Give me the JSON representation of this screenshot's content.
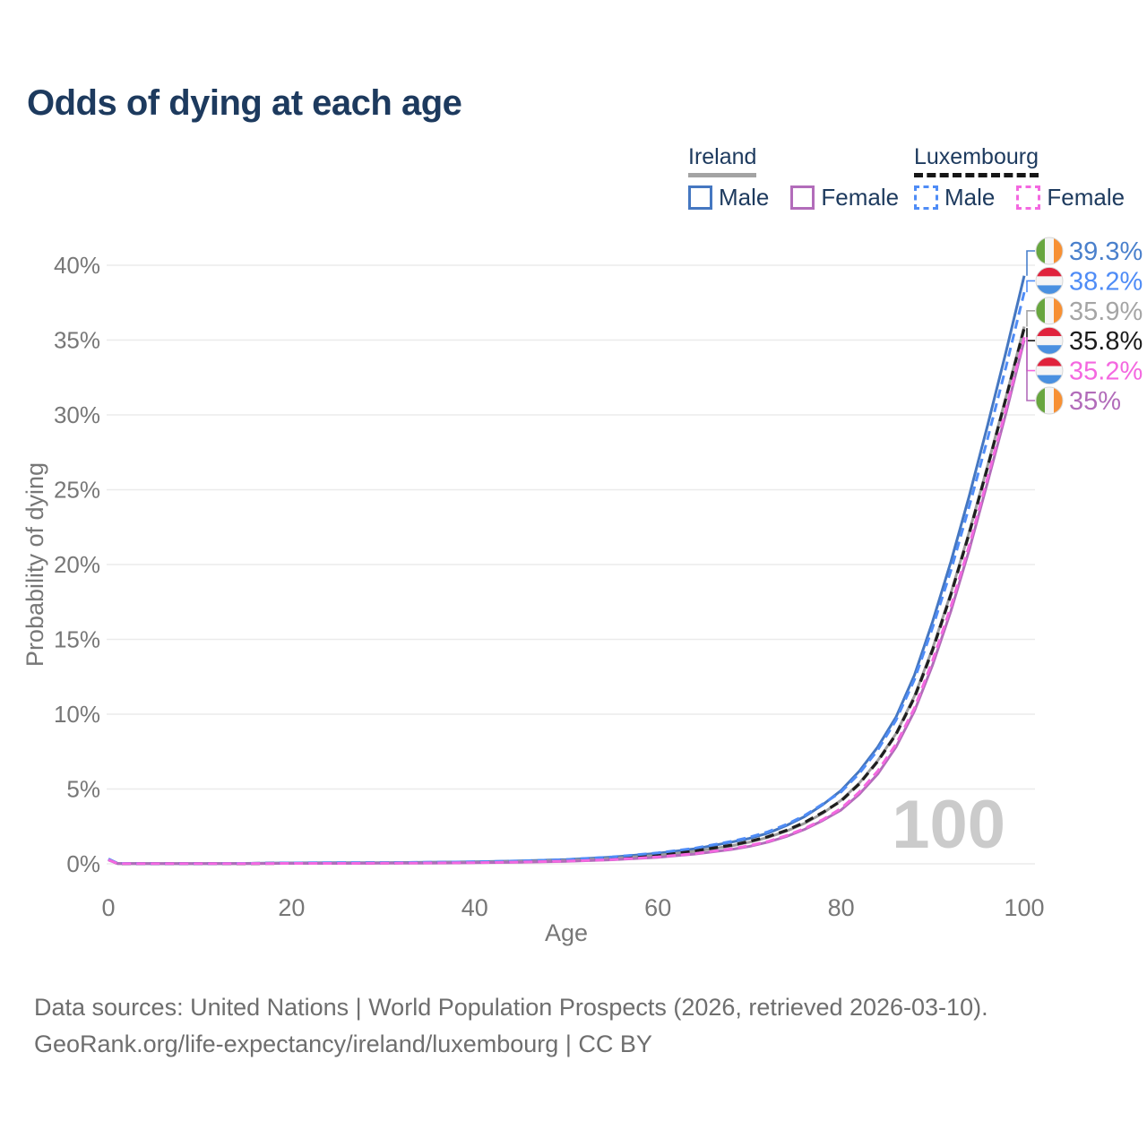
{
  "title": "Odds of dying at each age",
  "legend": {
    "groups": [
      {
        "id": "ireland",
        "label": "Ireland",
        "line_style": "solid",
        "underline_color": "#a3a3a3",
        "items": [
          {
            "label": "Male",
            "color": "#4577c1",
            "style": "solid"
          },
          {
            "label": "Female",
            "color": "#b26cba",
            "style": "solid"
          }
        ]
      },
      {
        "id": "luxembourg",
        "label": "Luxembourg",
        "line_style": "dashed",
        "underline_color": "#161616",
        "items": [
          {
            "label": "Male",
            "color": "#4f8cf6",
            "style": "dashed"
          },
          {
            "label": "Female",
            "color": "#f468e0",
            "style": "dashed"
          }
        ]
      }
    ]
  },
  "chart_data": {
    "type": "line",
    "title": "Odds of dying at each age",
    "xlabel": "Age",
    "ylabel": "Probability of dying",
    "xlim": [
      0,
      100
    ],
    "ylim": [
      0,
      40
    ],
    "grid": "horizontal",
    "legend_position": "top-right",
    "hover_age_watermark": "100",
    "xticks": [
      0,
      20,
      40,
      60,
      80,
      100
    ],
    "yticks": [
      {
        "value": 0,
        "label": "0%"
      },
      {
        "value": 5,
        "label": "5%"
      },
      {
        "value": 10,
        "label": "10%"
      },
      {
        "value": 15,
        "label": "15%"
      },
      {
        "value": 20,
        "label": "20%"
      },
      {
        "value": 25,
        "label": "25%"
      },
      {
        "value": 30,
        "label": "30%"
      },
      {
        "value": 35,
        "label": "35%"
      },
      {
        "value": 40,
        "label": "40%"
      }
    ],
    "ages": [
      0,
      1,
      5,
      10,
      15,
      20,
      25,
      30,
      35,
      40,
      45,
      50,
      55,
      60,
      64,
      68,
      70,
      72,
      74,
      76,
      78,
      80,
      82,
      84,
      86,
      88,
      90,
      92,
      94,
      96,
      98,
      100
    ],
    "series": [
      {
        "id": "ireland-male",
        "name": "Ireland Male",
        "country": "Ireland",
        "sex": "male",
        "style": "solid",
        "color": "#4577c1",
        "label_color": "#4a80cc",
        "flag": "ireland",
        "end_label": "39.3%",
        "end_value": 39.3,
        "label_rank": 0,
        "values": [
          0.31,
          0.03,
          0.01,
          0.01,
          0.03,
          0.06,
          0.07,
          0.08,
          0.1,
          0.13,
          0.19,
          0.28,
          0.45,
          0.7,
          1.0,
          1.45,
          1.7,
          2.05,
          2.55,
          3.15,
          3.95,
          4.9,
          6.2,
          7.8,
          9.8,
          12.6,
          16.2,
          20.2,
          24.6,
          29.3,
          34.2,
          39.3
        ]
      },
      {
        "id": "ireland-total",
        "name": "Ireland (both sexes)",
        "country": "Ireland",
        "sex": "both",
        "style": "solid",
        "color": "#9c9c9c",
        "label_color": "#a5a5a5",
        "flag": "ireland",
        "end_label": "35.9%",
        "end_value": 35.9,
        "label_rank": 2,
        "values": [
          0.29,
          0.02,
          0.01,
          0.01,
          0.02,
          0.04,
          0.05,
          0.06,
          0.08,
          0.1,
          0.15,
          0.23,
          0.36,
          0.57,
          0.83,
          1.2,
          1.45,
          1.76,
          2.18,
          2.7,
          3.38,
          4.25,
          5.4,
          6.9,
          8.7,
          11.2,
          14.4,
          18.1,
          22.2,
          26.6,
          31.2,
          35.9
        ]
      },
      {
        "id": "ireland-female",
        "name": "Ireland Female",
        "country": "Ireland",
        "sex": "female",
        "style": "solid",
        "color": "#b26cba",
        "label_color": "#b26cba",
        "flag": "ireland",
        "end_label": "35%",
        "end_value": 35.0,
        "label_rank": 5,
        "values": [
          0.26,
          0.02,
          0.01,
          0.01,
          0.02,
          0.03,
          0.03,
          0.04,
          0.05,
          0.07,
          0.11,
          0.17,
          0.27,
          0.44,
          0.65,
          0.96,
          1.17,
          1.45,
          1.82,
          2.3,
          2.9,
          3.6,
          4.65,
          6.0,
          7.8,
          10.2,
          13.3,
          16.9,
          21.0,
          25.5,
          30.1,
          35.0
        ]
      },
      {
        "id": "luxembourg-total",
        "name": "Luxembourg (both sexes)",
        "country": "Luxembourg",
        "sex": "both",
        "style": "dashed",
        "color": "#1f1f1f",
        "label_color": "#1c1c1c",
        "flag": "luxembourg",
        "end_label": "35.8%",
        "end_value": 35.8,
        "label_rank": 3,
        "values": [
          0.3,
          0.02,
          0.01,
          0.01,
          0.02,
          0.04,
          0.05,
          0.06,
          0.08,
          0.1,
          0.15,
          0.24,
          0.37,
          0.59,
          0.86,
          1.24,
          1.5,
          1.81,
          2.23,
          2.76,
          3.44,
          4.2,
          5.35,
          6.85,
          8.65,
          11.1,
          14.3,
          18.0,
          22.1,
          26.5,
          31.1,
          35.8
        ]
      },
      {
        "id": "luxembourg-male",
        "name": "Luxembourg Male",
        "country": "Luxembourg",
        "sex": "male",
        "style": "dashed",
        "color": "#4f8cf6",
        "label_color": "#4f8cf6",
        "flag": "luxembourg",
        "end_label": "38.2%",
        "end_value": 38.2,
        "label_rank": 1,
        "values": [
          0.33,
          0.03,
          0.01,
          0.01,
          0.03,
          0.06,
          0.07,
          0.08,
          0.1,
          0.13,
          0.19,
          0.29,
          0.46,
          0.73,
          1.04,
          1.5,
          1.78,
          2.14,
          2.62,
          3.22,
          4.0,
          4.8,
          6.05,
          7.6,
          9.6,
          12.3,
          15.8,
          19.6,
          23.9,
          28.4,
          33.2,
          38.2
        ]
      },
      {
        "id": "luxembourg-female",
        "name": "Luxembourg Female",
        "country": "Luxembourg",
        "sex": "female",
        "style": "dashed",
        "color": "#f468e0",
        "label_color": "#f468e0",
        "flag": "luxembourg",
        "end_label": "35.2%",
        "end_value": 35.2,
        "label_rank": 4,
        "values": [
          0.27,
          0.02,
          0.01,
          0.01,
          0.02,
          0.03,
          0.03,
          0.04,
          0.06,
          0.08,
          0.12,
          0.18,
          0.28,
          0.46,
          0.68,
          1.0,
          1.22,
          1.5,
          1.88,
          2.36,
          2.96,
          3.7,
          4.8,
          6.2,
          8.0,
          10.4,
          13.6,
          17.2,
          21.3,
          25.8,
          30.4,
          35.2
        ]
      }
    ],
    "flag_colors": {
      "ireland": [
        "#68a63f",
        "#f5f5f5",
        "#f79033"
      ],
      "luxembourg": [
        "#e0223c",
        "#f5f5f5",
        "#4a90e0"
      ]
    }
  },
  "footer": {
    "line1": "Data sources: United Nations | World Population Prospects (2026, retrieved 2026-03-10).",
    "line2": "GeoRank.org/life-expectancy/ireland/luxembourg | CC BY"
  }
}
